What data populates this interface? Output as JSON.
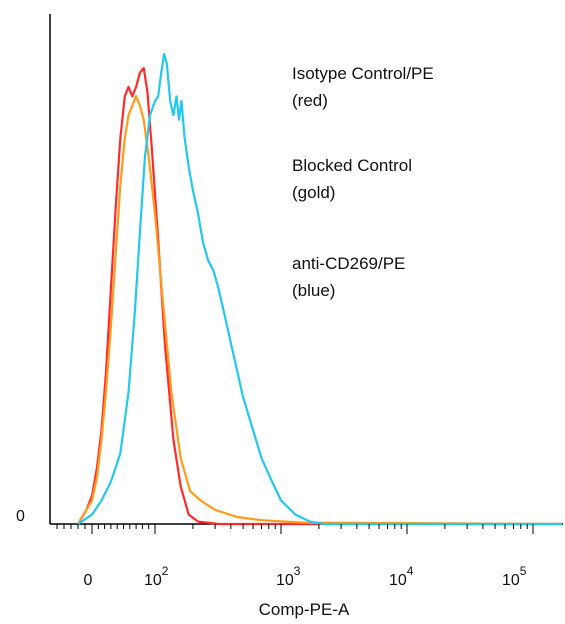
{
  "chart_data": {
    "type": "line",
    "title": "",
    "xlabel": "Comp-PE-A",
    "ylabel": "",
    "x_scale": "biexponential",
    "xlim": [
      -20,
      300000
    ],
    "ylim": [
      0,
      100
    ],
    "y_ticks": [
      {
        "label": "0",
        "value": 0
      }
    ],
    "x_ticks": [
      {
        "label": "0",
        "exp": "",
        "value": 0
      },
      {
        "label": "10",
        "exp": "2",
        "value": 100
      },
      {
        "label": "10",
        "exp": "3",
        "value": 1000
      },
      {
        "label": "10",
        "exp": "4",
        "value": 10000
      },
      {
        "label": "10",
        "exp": "5",
        "value": 100000
      }
    ],
    "grid": false,
    "legend_placement": "top-right",
    "legend": [
      {
        "line1": "Isotype Control/PE",
        "line2": "(red)",
        "color": "#ff2a2a"
      },
      {
        "line1": "Blocked Control",
        "line2": "(gold)",
        "color": "#ff9a1a"
      },
      {
        "line1": "anti-CD269/PE",
        "line2": "(blue)",
        "color": "#22c8ee"
      }
    ],
    "series": [
      {
        "color": "#ff2a2a",
        "points": [
          [
            -20,
            0
          ],
          [
            -8,
            3
          ],
          [
            0,
            6
          ],
          [
            8,
            12
          ],
          [
            15,
            20
          ],
          [
            22,
            32
          ],
          [
            30,
            50
          ],
          [
            38,
            68
          ],
          [
            45,
            82
          ],
          [
            52,
            91
          ],
          [
            58,
            93
          ],
          [
            64,
            91
          ],
          [
            70,
            93
          ],
          [
            76,
            96
          ],
          [
            82,
            97
          ],
          [
            88,
            92
          ],
          [
            95,
            80
          ],
          [
            105,
            62
          ],
          [
            120,
            38
          ],
          [
            140,
            18
          ],
          [
            160,
            8
          ],
          [
            185,
            2
          ],
          [
            220,
            0.5
          ],
          [
            320,
            0
          ],
          [
            1000,
            0
          ],
          [
            300000,
            0
          ]
        ]
      },
      {
        "color": "#ff9a1a",
        "points": [
          [
            -20,
            0
          ],
          [
            -8,
            3
          ],
          [
            0,
            5
          ],
          [
            8,
            10
          ],
          [
            15,
            18
          ],
          [
            22,
            28
          ],
          [
            30,
            42
          ],
          [
            38,
            58
          ],
          [
            45,
            72
          ],
          [
            52,
            82
          ],
          [
            58,
            87
          ],
          [
            64,
            89
          ],
          [
            70,
            91
          ],
          [
            76,
            89
          ],
          [
            82,
            86
          ],
          [
            90,
            78
          ],
          [
            100,
            66
          ],
          [
            115,
            48
          ],
          [
            135,
            28
          ],
          [
            160,
            14
          ],
          [
            190,
            7
          ],
          [
            230,
            5
          ],
          [
            300,
            3
          ],
          [
            450,
            1.5
          ],
          [
            700,
            0.8
          ],
          [
            1500,
            0.3
          ],
          [
            300000,
            0
          ]
        ]
      },
      {
        "color": "#22c8ee",
        "points": [
          [
            -20,
            0
          ],
          [
            0,
            2
          ],
          [
            15,
            5
          ],
          [
            30,
            9
          ],
          [
            45,
            15
          ],
          [
            58,
            28
          ],
          [
            68,
            45
          ],
          [
            76,
            62
          ],
          [
            84,
            78
          ],
          [
            92,
            87
          ],
          [
            100,
            90
          ],
          [
            106,
            91
          ],
          [
            112,
            96
          ],
          [
            118,
            100
          ],
          [
            124,
            98
          ],
          [
            132,
            90
          ],
          [
            140,
            87
          ],
          [
            148,
            91
          ],
          [
            155,
            86
          ],
          [
            162,
            90
          ],
          [
            172,
            82
          ],
          [
            185,
            76
          ],
          [
            200,
            71
          ],
          [
            220,
            66
          ],
          [
            240,
            60
          ],
          [
            265,
            56
          ],
          [
            290,
            54
          ],
          [
            320,
            50
          ],
          [
            360,
            44
          ],
          [
            420,
            36
          ],
          [
            500,
            27
          ],
          [
            600,
            20
          ],
          [
            700,
            14
          ],
          [
            850,
            9
          ],
          [
            1000,
            5
          ],
          [
            1300,
            2
          ],
          [
            1700,
            0.5
          ],
          [
            2200,
            0
          ],
          [
            300000,
            0
          ]
        ]
      }
    ]
  }
}
